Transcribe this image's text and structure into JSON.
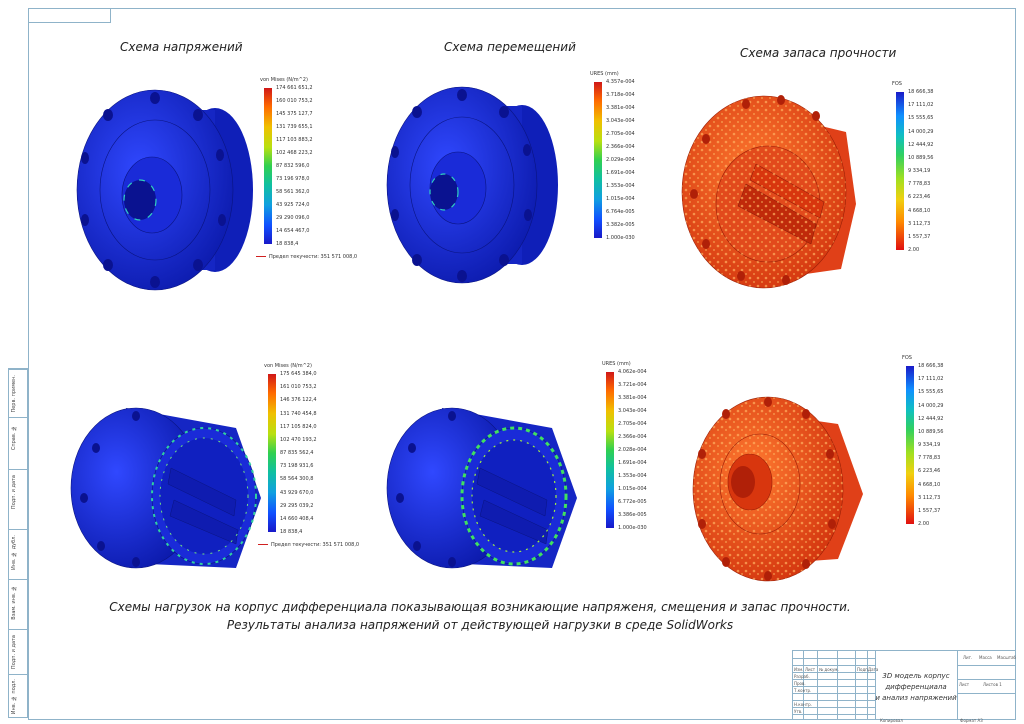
{
  "titles": {
    "stress": "Схема напряжений",
    "displacement": "Схема перемещений",
    "safety": "Схема запаса прочности"
  },
  "legends": {
    "stress_top": {
      "header": "von Mises (N/m^2)",
      "values": [
        "174 661 651,2",
        "160 010 753,2",
        "145 375 127,7",
        "131 739 655,1",
        "117 103 883,2",
        "102 468 223,2",
        "87 832 596,0",
        "73 196 978,0",
        "58 561 362,0",
        "43 925 724,0",
        "29 290 096,0",
        "14 654 467,0",
        "18 838,4"
      ],
      "yield": "Предел текучести: 351 571 008,0"
    },
    "disp_top": {
      "header": "URES (mm)",
      "values": [
        "4.357e-004",
        "3.718e-004",
        "3.381e-004",
        "3.043e-004",
        "2.705e-004",
        "2.366e-004",
        "2.029e-004",
        "1.691e-004",
        "1.353e-004",
        "1.015e-004",
        "6.764e-005",
        "3.382e-005",
        "1.000e-030"
      ]
    },
    "fos_top": {
      "header": "FOS",
      "values": [
        "18 666,38",
        "17 111,02",
        "15 555,65",
        "14 000,29",
        "12 444,92",
        "10 889,56",
        "9 334,19",
        "7 778,83",
        "6 223,46",
        "4 668,10",
        "3 112,73",
        "1 557,37",
        "2.00"
      ]
    },
    "stress_bot": {
      "header": "von Mises (N/m^2)",
      "values": [
        "175 645 384,0",
        "161 010 753,2",
        "146 376 122,4",
        "131 740 454,8",
        "117 105 824,0",
        "102 470 193,2",
        "87 835 562,4",
        "73 198 931,6",
        "58 564 300,8",
        "43 929 670,0",
        "29 295 039,2",
        "14 660 408,4",
        "18 838,4"
      ],
      "yield": "Предел текучести: 351 571 008,0"
    },
    "disp_bot": {
      "header": "URES (mm)",
      "values": [
        "4.062e-004",
        "3.721e-004",
        "3.381e-004",
        "3.043e-004",
        "2.705e-004",
        "2.366e-004",
        "2.028e-004",
        "1.691e-004",
        "1.353e-004",
        "1.015e-004",
        "6.772e-005",
        "3.386e-005",
        "1.000e-030"
      ]
    },
    "fos_bot": {
      "header": "FOS",
      "values": [
        "18 666,38",
        "17 111,02",
        "15 555,65",
        "14 000,29",
        "12 444,92",
        "10 889,56",
        "9 334,19",
        "7 778,83",
        "6 223,46",
        "4 668,10",
        "3 112,73",
        "1 557,37",
        "2.00"
      ]
    }
  },
  "caption": {
    "line1": "Схемы нагрузок на корпус дифференциала показывающая возникающие напряженя, смещения и запас прочности.",
    "line2": "Результаты анализа напряжений от действующей нагрузки в среде SolidWorks"
  },
  "stamp": {
    "title_line1": "3D модель корпус дифференциала",
    "title_line2": "и анализ напряжений",
    "lit": "Лит.",
    "mass": "Масса",
    "scale": "Масштаб",
    "sheet": "Лист",
    "sheets": "Листов 1",
    "izm": "Изм.",
    "list": "Лист",
    "doc": "№ докум.",
    "sign": "Подп.",
    "date": "Дата",
    "razrab": "Разраб.",
    "prov": "Пров.",
    "tkontr": "Т.контр.",
    "nkontr": "Н.контр.",
    "utv": "Утв.",
    "kopiroval": "Копировал",
    "format": "Формат А3"
  },
  "side": {
    "cells": [
      "Перв. примен.",
      "Справ. №",
      "Подп. и дата",
      "Инв. № дубл.",
      "Взам. инв. №",
      "Подп. и дата",
      "Инв. № подл."
    ]
  },
  "colors": {
    "body_blue": "#1a2bd8",
    "body_red": "#e8401c",
    "frame": "#8fb3c9"
  }
}
